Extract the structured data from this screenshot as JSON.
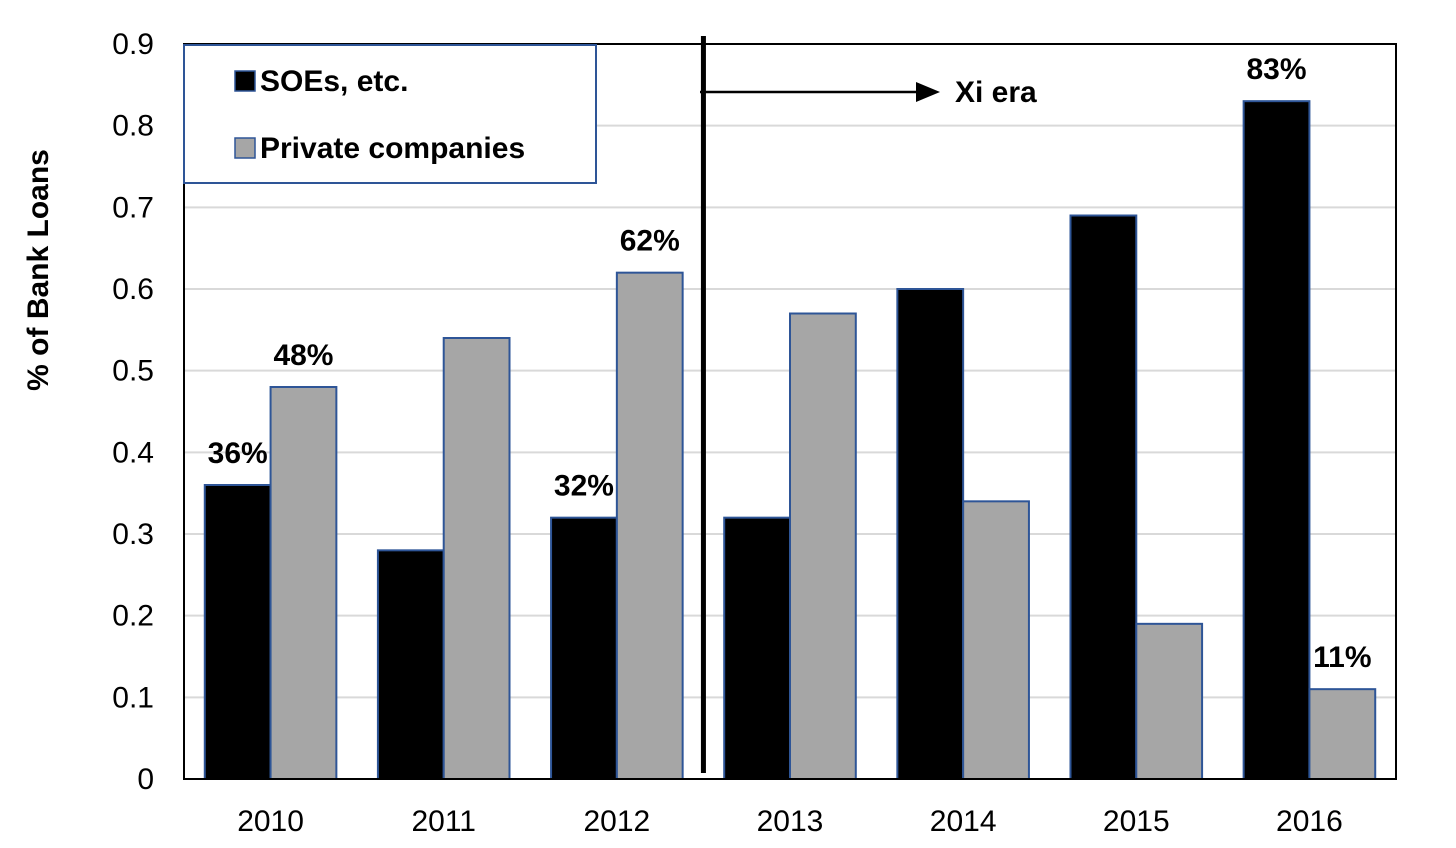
{
  "chart_data": {
    "type": "bar",
    "categories": [
      "2010",
      "2011",
      "2012",
      "2013",
      "2014",
      "2015",
      "2016"
    ],
    "series": [
      {
        "name": "SOEs, etc.",
        "values": [
          0.36,
          0.28,
          0.32,
          0.32,
          0.6,
          0.69,
          0.83
        ],
        "color": "#000000"
      },
      {
        "name": "Private companies",
        "values": [
          0.48,
          0.54,
          0.62,
          0.57,
          0.34,
          0.19,
          0.11
        ],
        "color": "#a6a6a6"
      }
    ],
    "ylabel": "% of Bank Loans",
    "ylim": [
      0,
      0.9
    ],
    "yticks": [
      "0",
      "0.1",
      "0.2",
      "0.3",
      "0.4",
      "0.5",
      "0.6",
      "0.7",
      "0.8",
      "0.9"
    ],
    "grid": true,
    "legend_position": "top-left",
    "bar_border_color": "#2e5597",
    "data_labels": [
      {
        "series": 0,
        "category": "2010",
        "text": "36%"
      },
      {
        "series": 1,
        "category": "2010",
        "text": "48%"
      },
      {
        "series": 0,
        "category": "2012",
        "text": "32%"
      },
      {
        "series": 1,
        "category": "2012",
        "text": "62%"
      },
      {
        "series": 0,
        "category": "2016",
        "text": "83%"
      },
      {
        "series": 1,
        "category": "2016",
        "text": "11%"
      }
    ],
    "annotation": {
      "text": "Xi era",
      "divider_between": [
        "2012",
        "2013"
      ]
    }
  }
}
